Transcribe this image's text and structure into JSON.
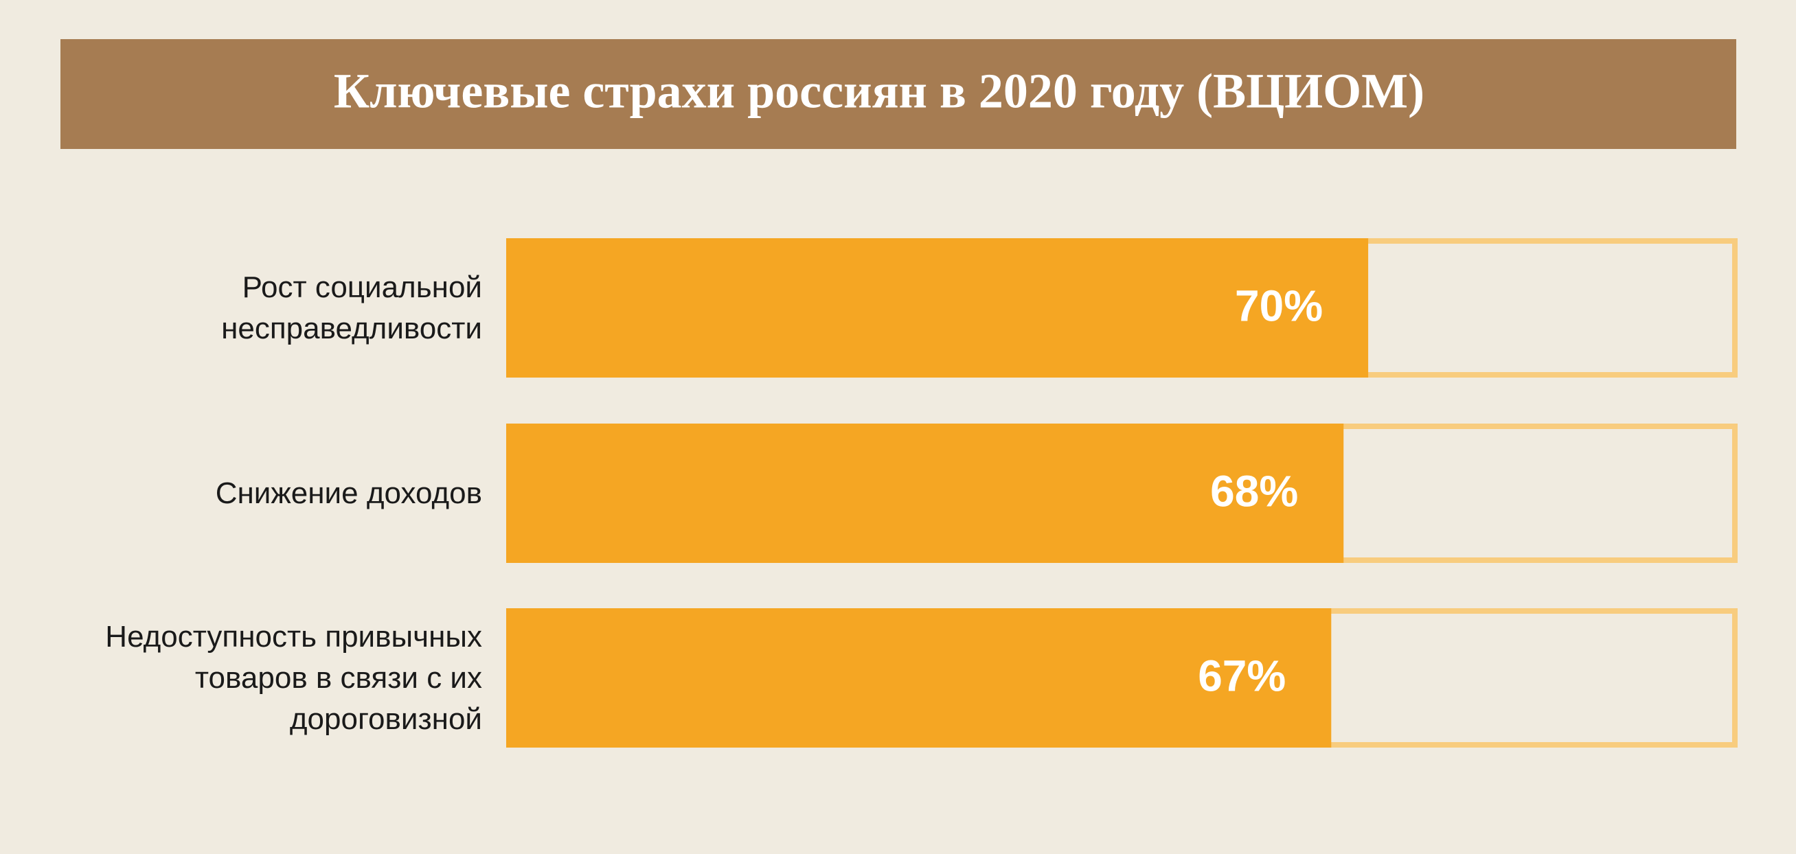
{
  "chart_data": {
    "type": "hbar",
    "title": "Ключевые страхи россиян в 2020 году (ВЦИОМ)",
    "categories": [
      "Рост социальной несправедливости",
      "Снижение доходов",
      "Недоступность привычных товаров в связи с их дороговизной"
    ],
    "values": [
      70,
      68,
      67
    ],
    "value_labels": [
      "70%",
      "68%",
      "67%"
    ],
    "color": "#f5a623",
    "xlim": [
      0,
      100
    ]
  }
}
